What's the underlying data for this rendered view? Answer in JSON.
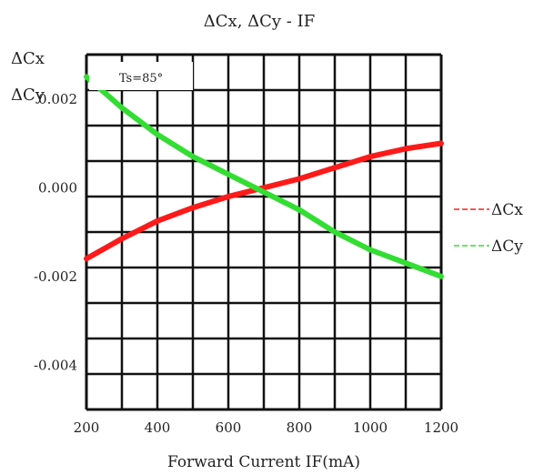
{
  "chart_data": {
    "type": "line",
    "title": "ΔCx, ΔCy - IF",
    "ylabel_lines": [
      "ΔCx",
      "ΔCy"
    ],
    "xlabel": "Forward Current IF(mA)",
    "annotation": "Ts=85°",
    "xlim": [
      200,
      1200
    ],
    "ylim": [
      -0.005,
      0.003
    ],
    "x_ticks": [
      200,
      400,
      600,
      800,
      1000,
      1200
    ],
    "x_tick_labels": [
      "200",
      "400",
      "600",
      "800",
      "1000",
      "1200"
    ],
    "y_ticks": [
      0.002,
      0.0,
      -0.002,
      -0.004
    ],
    "y_tick_labels": [
      "0.002",
      "0.000",
      "-0.002",
      "-0.004"
    ],
    "grid": true,
    "legend_position": "right",
    "series": [
      {
        "name": "ΔCx",
        "color": "#ff1a1a",
        "x": [
          200,
          300,
          400,
          500,
          600,
          700,
          800,
          900,
          1000,
          1100,
          1200
        ],
        "y": [
          -0.0016,
          -0.00115,
          -0.00075,
          -0.00045,
          -0.0002,
          0.0,
          0.0002,
          0.00045,
          0.0007,
          0.00088,
          0.001
        ]
      },
      {
        "name": "ΔCy",
        "color": "#33dd33",
        "x": [
          200,
          300,
          400,
          500,
          600,
          700,
          800,
          900,
          1000,
          1100,
          1200
        ],
        "y": [
          0.0025,
          0.0018,
          0.0012,
          0.0007,
          0.0003,
          -0.0001,
          -0.0005,
          -0.001,
          -0.0014,
          -0.0017,
          -0.002
        ]
      }
    ]
  }
}
